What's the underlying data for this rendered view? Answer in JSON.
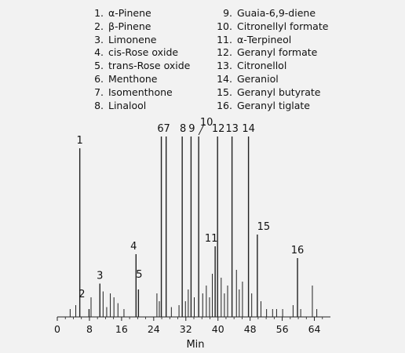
{
  "legend": [
    {
      "num": "1.",
      "name": "α-Pinene"
    },
    {
      "num": "2.",
      "name": "β-Pinene"
    },
    {
      "num": "3.",
      "name": "Limonene"
    },
    {
      "num": "4.",
      "name": "cis-Rose oxide"
    },
    {
      "num": "5.",
      "name": "trans-Rose oxide"
    },
    {
      "num": "6.",
      "name": "Menthone"
    },
    {
      "num": "7.",
      "name": "Isomenthone"
    },
    {
      "num": "8.",
      "name": "Linalool"
    },
    {
      "num": "9.",
      "name": "Guaia-6,9-diene"
    },
    {
      "num": "10.",
      "name": "Citronellyl formate"
    },
    {
      "num": "11.",
      "name": "α-Terpineol"
    },
    {
      "num": "12.",
      "name": "Geranyl formate"
    },
    {
      "num": "13.",
      "name": "Citronellol"
    },
    {
      "num": "14.",
      "name": "Geraniol"
    },
    {
      "num": "15.",
      "name": "Geranyl butyrate"
    },
    {
      "num": "16.",
      "name": "Geranyl tiglate"
    }
  ],
  "chart_data": {
    "type": "line",
    "title": "",
    "xlabel": "Min",
    "ylabel": "",
    "xlim": [
      0,
      68
    ],
    "ylim": [
      0,
      100
    ],
    "xticks": [
      0,
      8,
      16,
      24,
      32,
      40,
      48,
      56,
      64
    ],
    "grid": false,
    "line_color": "#222222",
    "labeled_peaks": [
      {
        "label": "1",
        "x": 5.6,
        "y": 86
      },
      {
        "label": "2",
        "x": 7.9,
        "y": 4
      },
      {
        "label": "3",
        "x": 10.6,
        "y": 17
      },
      {
        "label": "4",
        "x": 19.6,
        "y": 32
      },
      {
        "label": "5",
        "x": 20.2,
        "y": 14
      },
      {
        "label": "6",
        "x": 25.9,
        "y": 92
      },
      {
        "label": "7",
        "x": 27.1,
        "y": 92
      },
      {
        "label": "8",
        "x": 31.1,
        "y": 92
      },
      {
        "label": "9",
        "x": 33.3,
        "y": 92
      },
      {
        "label": "10",
        "x": 35.2,
        "y": 92
      },
      {
        "label": "11",
        "x": 39.3,
        "y": 36
      },
      {
        "label": "12",
        "x": 39.9,
        "y": 92
      },
      {
        "label": "13",
        "x": 43.5,
        "y": 92
      },
      {
        "label": "14",
        "x": 47.6,
        "y": 92
      },
      {
        "label": "15",
        "x": 49.8,
        "y": 42
      },
      {
        "label": "16",
        "x": 59.8,
        "y": 30
      }
    ],
    "minor_peaks": [
      {
        "x": 3.2,
        "y": 4
      },
      {
        "x": 4.6,
        "y": 6
      },
      {
        "x": 8.4,
        "y": 10
      },
      {
        "x": 11.4,
        "y": 13
      },
      {
        "x": 12.3,
        "y": 5
      },
      {
        "x": 13.2,
        "y": 12
      },
      {
        "x": 14.1,
        "y": 10
      },
      {
        "x": 15.1,
        "y": 7
      },
      {
        "x": 16.6,
        "y": 4
      },
      {
        "x": 24.8,
        "y": 12
      },
      {
        "x": 25.4,
        "y": 8
      },
      {
        "x": 28.4,
        "y": 5
      },
      {
        "x": 30.3,
        "y": 6
      },
      {
        "x": 31.9,
        "y": 8
      },
      {
        "x": 32.6,
        "y": 14
      },
      {
        "x": 34.1,
        "y": 10
      },
      {
        "x": 36.2,
        "y": 12
      },
      {
        "x": 37.1,
        "y": 16
      },
      {
        "x": 37.9,
        "y": 10
      },
      {
        "x": 38.6,
        "y": 22
      },
      {
        "x": 40.8,
        "y": 20
      },
      {
        "x": 41.6,
        "y": 12
      },
      {
        "x": 42.4,
        "y": 16
      },
      {
        "x": 44.6,
        "y": 24
      },
      {
        "x": 45.3,
        "y": 14
      },
      {
        "x": 46.1,
        "y": 18
      },
      {
        "x": 48.4,
        "y": 12
      },
      {
        "x": 50.7,
        "y": 8
      },
      {
        "x": 52.1,
        "y": 4
      },
      {
        "x": 53.6,
        "y": 4
      },
      {
        "x": 54.6,
        "y": 4
      },
      {
        "x": 56.1,
        "y": 4
      },
      {
        "x": 58.7,
        "y": 6
      },
      {
        "x": 60.6,
        "y": 4
      },
      {
        "x": 63.5,
        "y": 16
      },
      {
        "x": 64.6,
        "y": 4
      }
    ]
  }
}
